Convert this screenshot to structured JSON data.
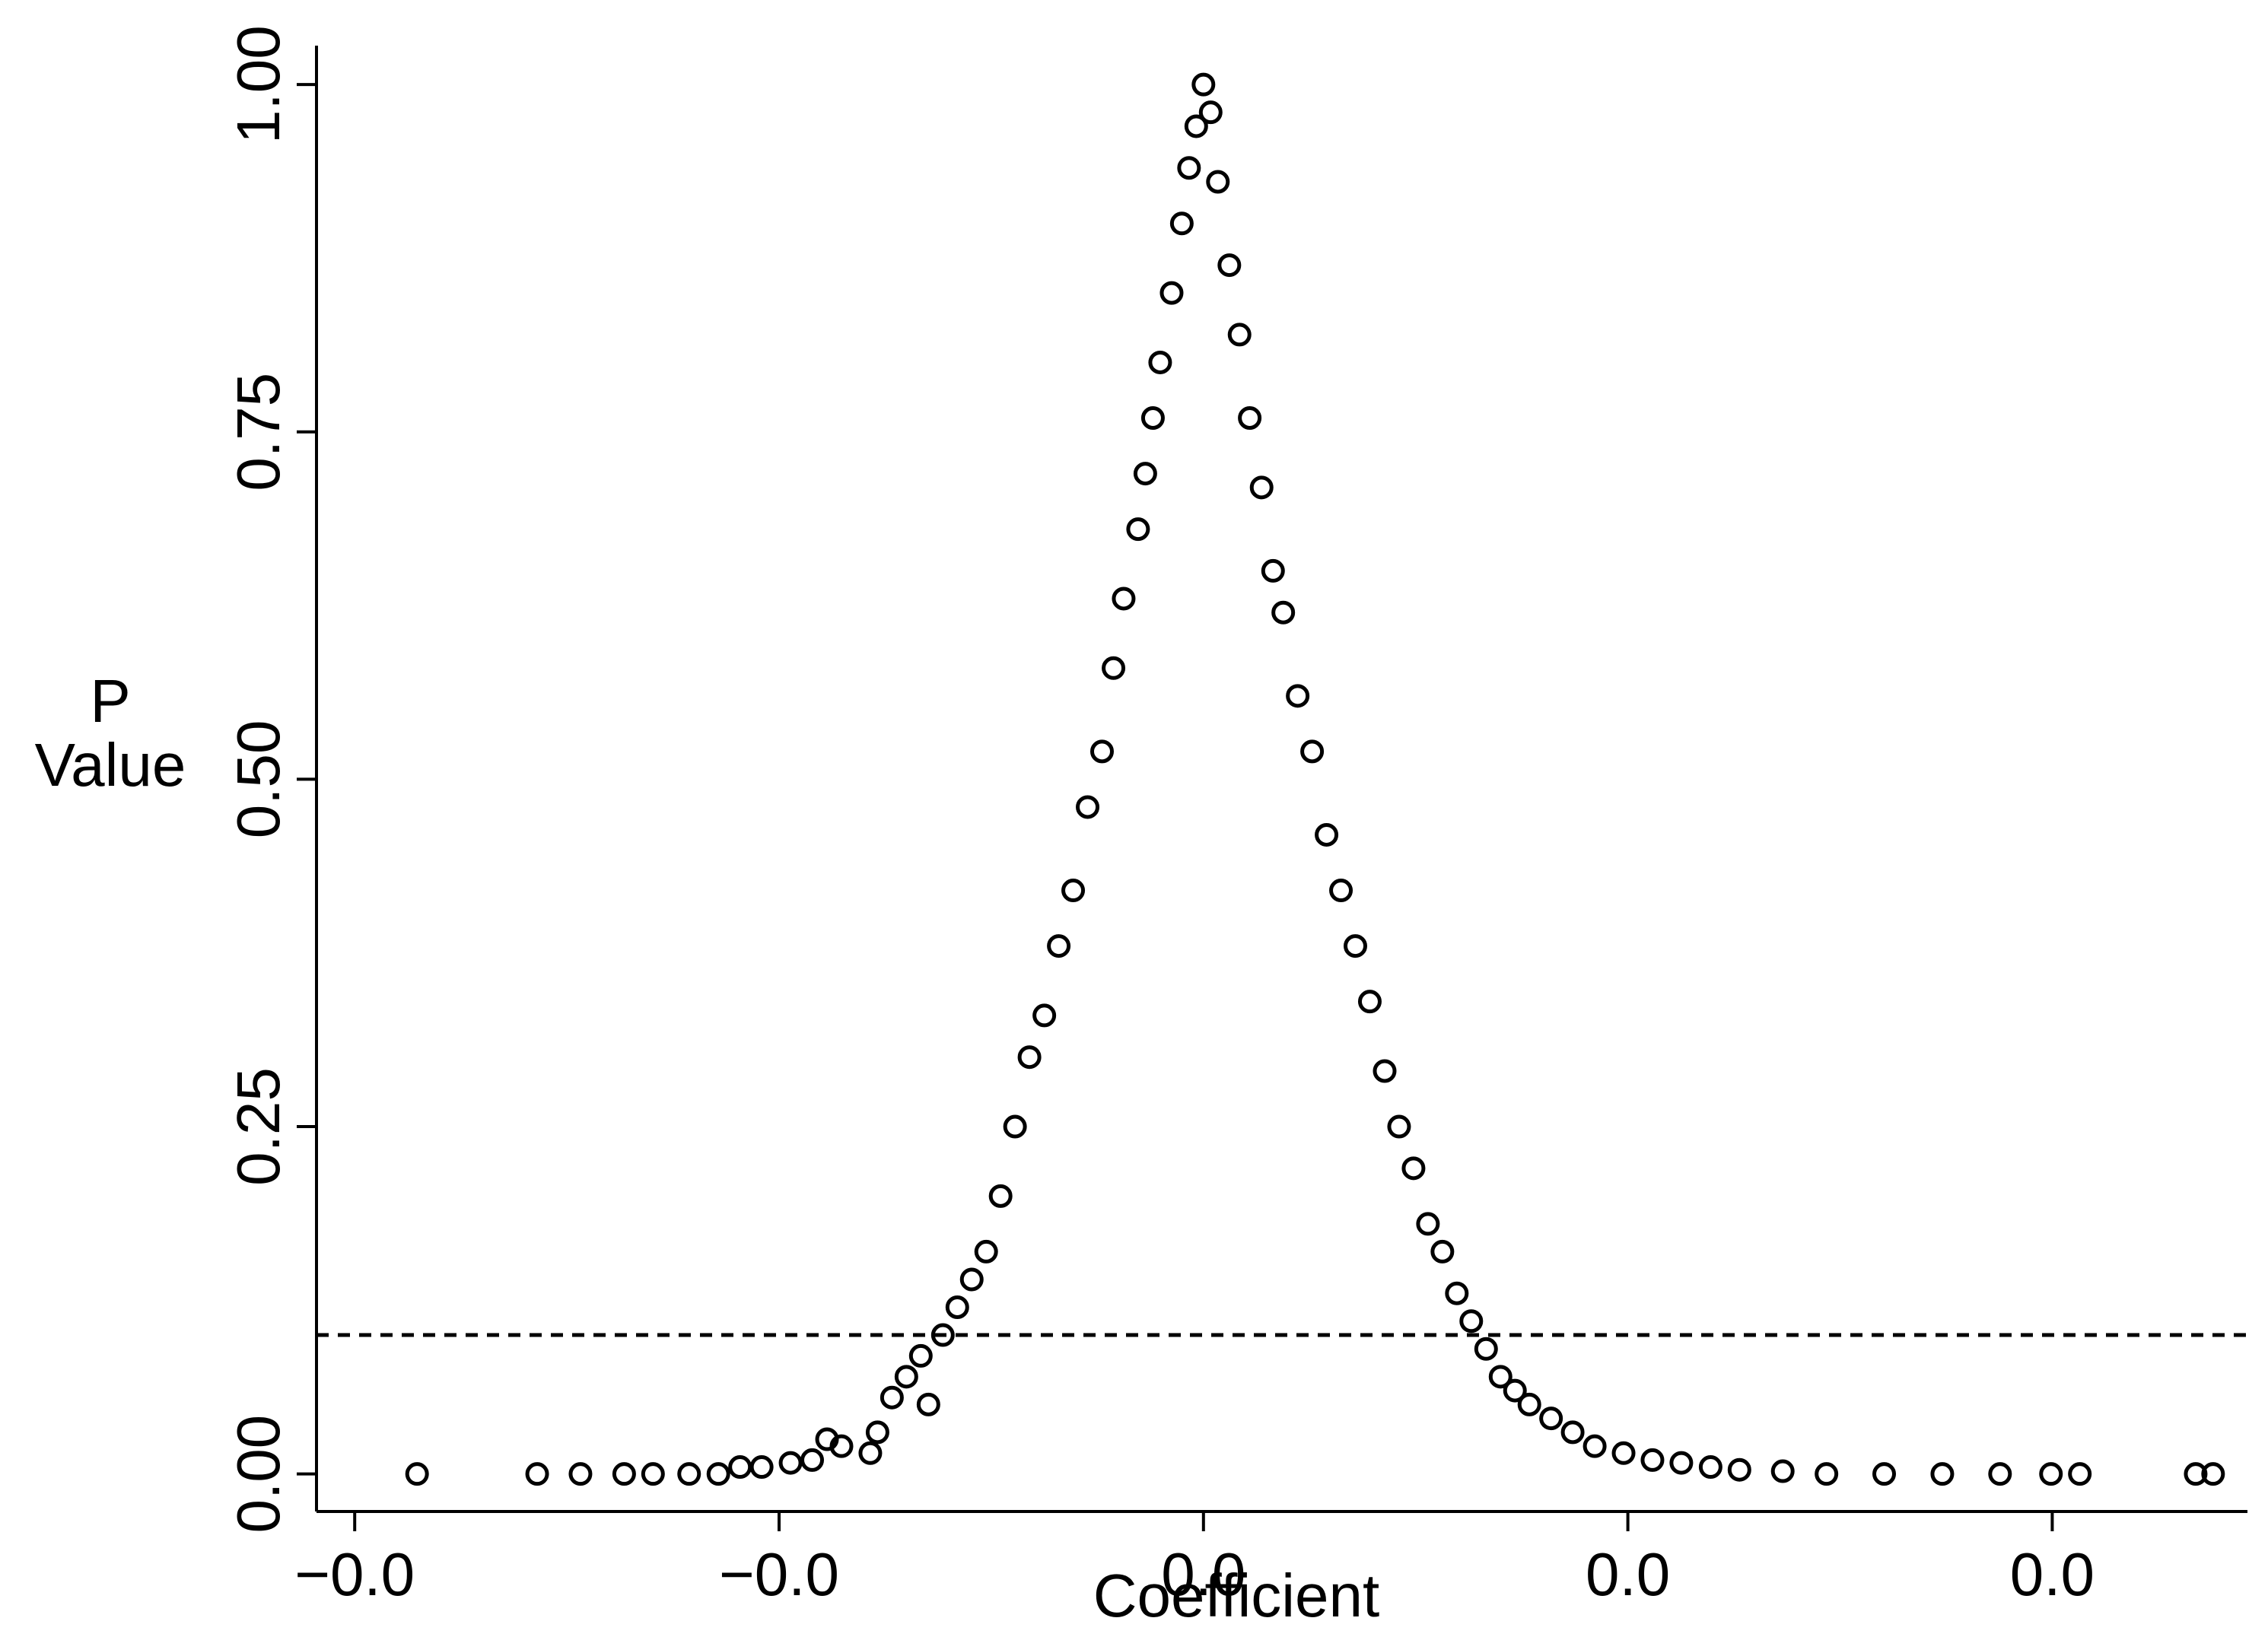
{
  "chart_data": {
    "type": "scatter",
    "xlabel": "Coefficient",
    "ylabel": "P Value",
    "xlim": [
      -0.0209,
      0.0246
    ],
    "ylim": [
      -0.027,
      1.028
    ],
    "xticks": [
      {
        "value": -0.02,
        "label": "−0.0"
      },
      {
        "value": -0.01,
        "label": "−0.0"
      },
      {
        "value": 0,
        "label": "0.0"
      },
      {
        "value": 0.01,
        "label": "0.0"
      },
      {
        "value": 0.02,
        "label": "0.0"
      }
    ],
    "yticks": [
      {
        "value": 0,
        "label": "0.00"
      },
      {
        "value": 0.25,
        "label": "0.25"
      },
      {
        "value": 0.5,
        "label": "0.50"
      },
      {
        "value": 0.75,
        "label": "0.75"
      },
      {
        "value": 1,
        "label": "1.00"
      }
    ],
    "reference_line": 0.1,
    "color": "#000000",
    "x": [
      -0.01853,
      -0.0157,
      -0.01468,
      -0.01365,
      -0.01297,
      -0.01212,
      -0.01143,
      -0.01092,
      -0.01041,
      -0.00973,
      -0.00922,
      -0.00887,
      -0.00853,
      -0.00785,
      -0.00768,
      -0.00734,
      -0.007,
      -0.00666,
      -0.00648,
      -0.00614,
      -0.0058,
      -0.00546,
      -0.00512,
      -0.00478,
      -0.00444,
      -0.0041,
      -0.00375,
      -0.00341,
      -0.00307,
      -0.00273,
      -0.00239,
      -0.00212,
      -0.00188,
      -0.00154,
      -0.00137,
      -0.00119,
      -0.00102,
      -0.00075,
      -0.00051,
      -0.00034,
      -0.00017,
      0,
      0.00017,
      0.00034,
      0.00061,
      0.00085,
      0.00109,
      0.00137,
      0.00164,
      0.00188,
      0.00222,
      0.00256,
      0.0029,
      0.00324,
      0.00358,
      0.00392,
      0.00427,
      0.00461,
      0.00495,
      0.00529,
      0.00563,
      0.00597,
      0.00631,
      0.00666,
      0.007,
      0.00734,
      0.00768,
      0.00819,
      0.0087,
      0.00922,
      0.0099,
      0.01058,
      0.01126,
      0.01195,
      0.01263,
      0.01365,
      0.01468,
      0.01604,
      0.01741,
      0.01877,
      0.01997,
      0.02065,
      0.02338,
      0.02379
    ],
    "values": [
      0,
      0,
      0,
      0,
      0,
      0,
      0,
      0.005,
      0.005,
      0.008,
      0.01,
      0.025,
      0.02,
      0.015,
      0.03,
      0.055,
      0.07,
      0.085,
      0.05,
      0.1,
      0.12,
      0.14,
      0.16,
      0.2,
      0.25,
      0.3,
      0.33,
      0.38,
      0.42,
      0.48,
      0.52,
      0.58,
      0.63,
      0.68,
      0.72,
      0.76,
      0.8,
      0.85,
      0.9,
      0.94,
      0.97,
      1.0,
      0.98,
      0.93,
      0.87,
      0.82,
      0.76,
      0.71,
      0.65,
      0.62,
      0.56,
      0.52,
      0.46,
      0.42,
      0.38,
      0.34,
      0.29,
      0.25,
      0.22,
      0.18,
      0.16,
      0.13,
      0.11,
      0.09,
      0.07,
      0.06,
      0.05,
      0.04,
      0.03,
      0.02,
      0.015,
      0.01,
      0.008,
      0.005,
      0.003,
      0.002,
      0,
      0,
      0,
      0,
      0,
      0,
      0,
      0
    ]
  }
}
